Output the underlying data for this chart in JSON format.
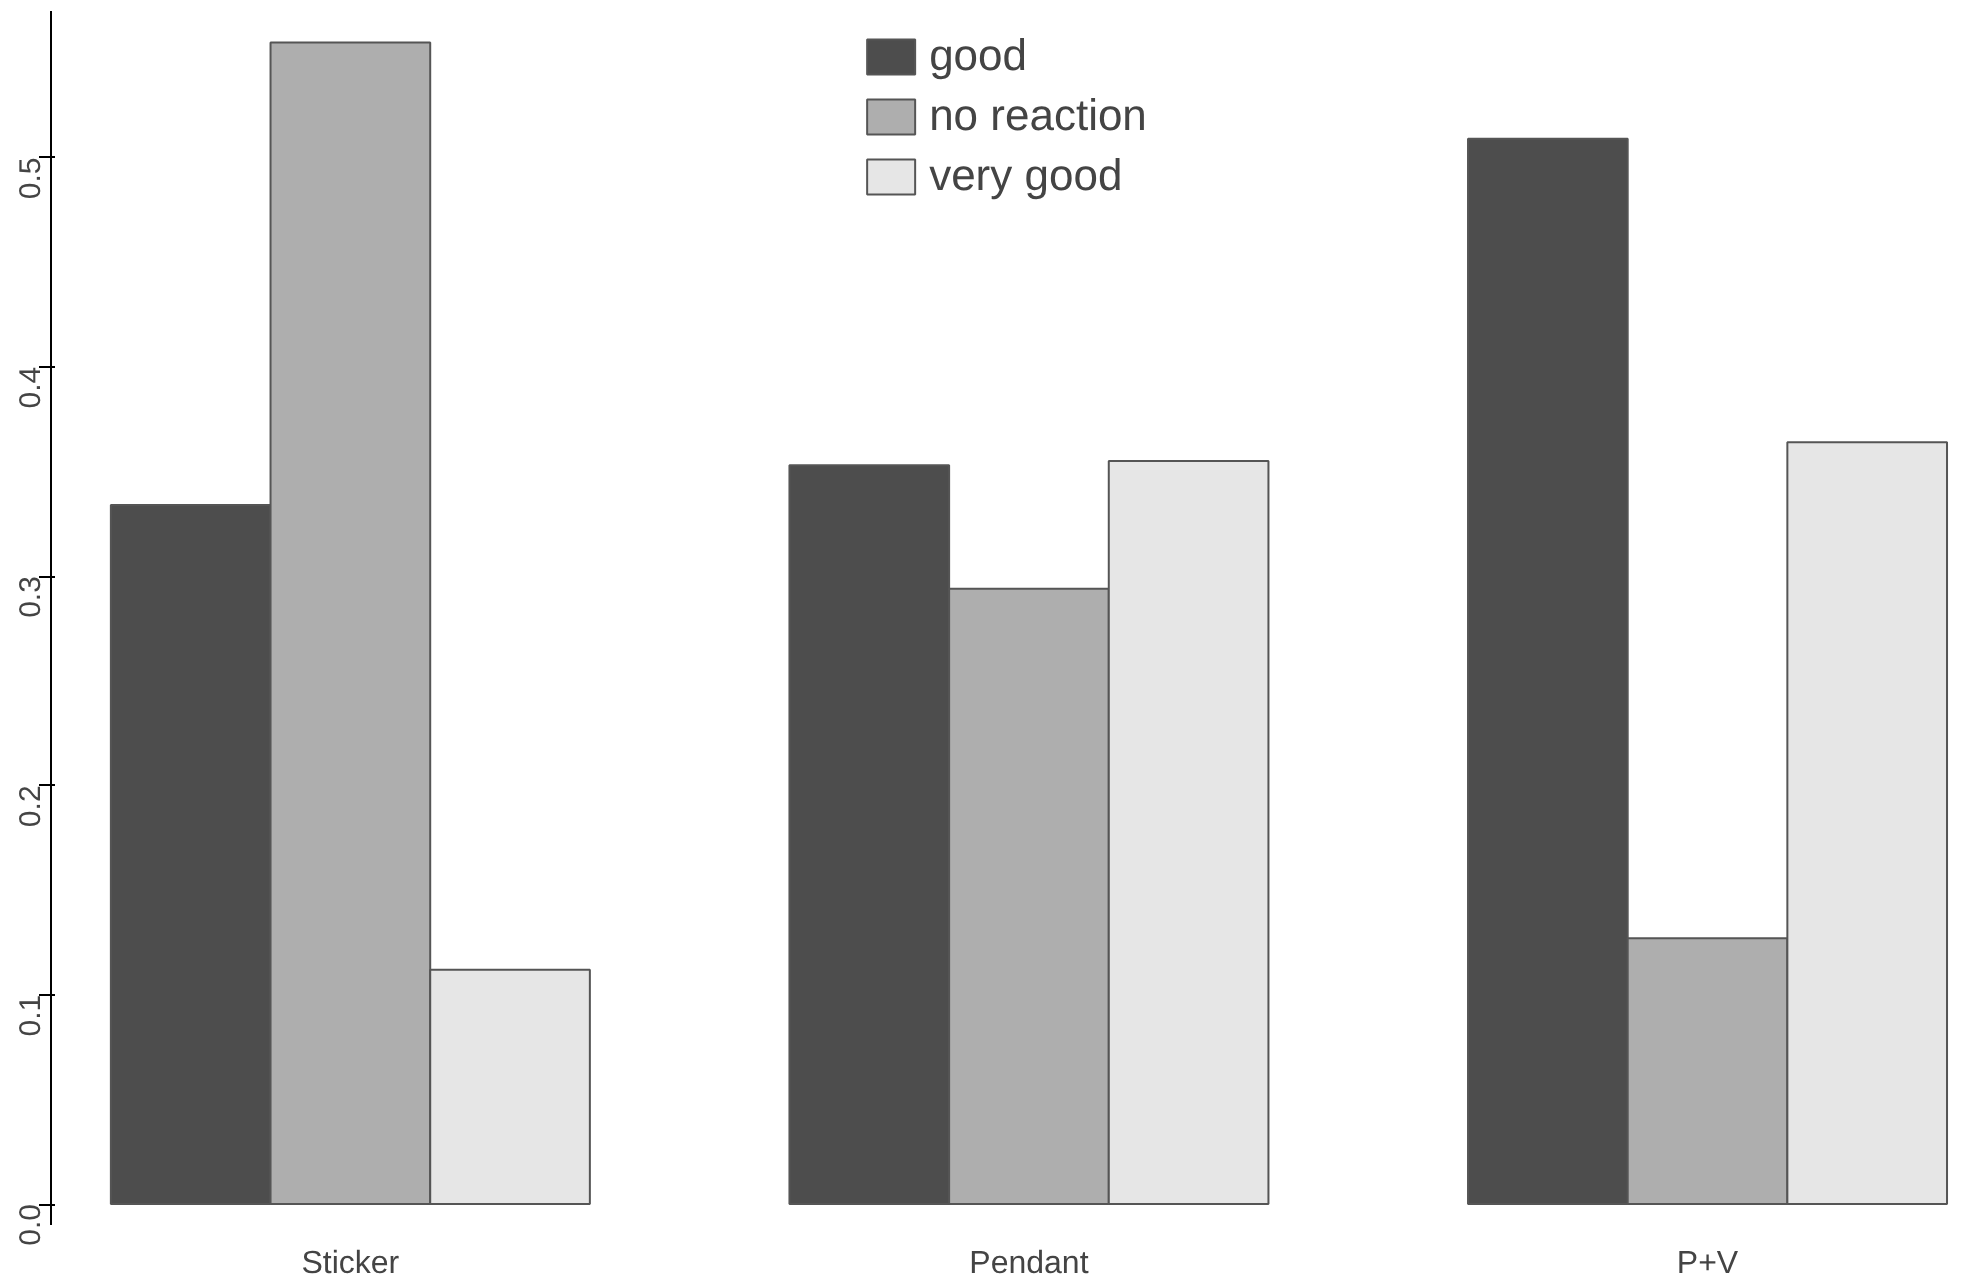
{
  "chart_data": {
    "type": "bar",
    "categories": [
      "Sticker",
      "Pendant",
      "P+V"
    ],
    "series": [
      {
        "name": "good",
        "color": "#4d4d4d",
        "values": [
          0.334,
          0.353,
          0.509
        ]
      },
      {
        "name": "no reaction",
        "color": "#aeaeae",
        "values": [
          0.555,
          0.294,
          0.127
        ]
      },
      {
        "name": "very good",
        "color": "#e6e6e6",
        "values": [
          0.112,
          0.355,
          0.364
        ]
      }
    ],
    "ylim": [
      -0.01,
      0.57
    ],
    "yticks": [
      {
        "value": 0,
        "label": "0.0"
      },
      0.1,
      0.2,
      0.3,
      0.4,
      0.5
    ],
    "grid": false,
    "legend": "top"
  }
}
